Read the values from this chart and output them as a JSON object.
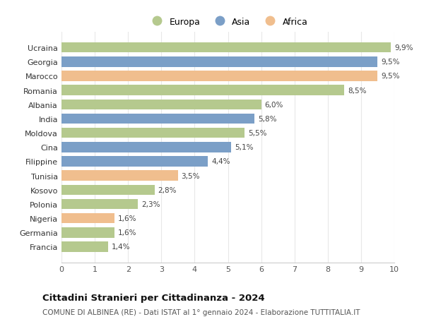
{
  "categories": [
    "Francia",
    "Germania",
    "Nigeria",
    "Polonia",
    "Kosovo",
    "Tunisia",
    "Filippine",
    "Cina",
    "Moldova",
    "India",
    "Albania",
    "Romania",
    "Marocco",
    "Georgia",
    "Ucraina"
  ],
  "values": [
    1.4,
    1.6,
    1.6,
    2.3,
    2.8,
    3.5,
    4.4,
    5.1,
    5.5,
    5.8,
    6.0,
    8.5,
    9.5,
    9.5,
    9.9
  ],
  "continents": [
    "Europa",
    "Europa",
    "Africa",
    "Europa",
    "Europa",
    "Africa",
    "Asia",
    "Asia",
    "Europa",
    "Asia",
    "Europa",
    "Europa",
    "Africa",
    "Asia",
    "Europa"
  ],
  "colors": {
    "Europa": "#b5c98e",
    "Asia": "#7b9fc7",
    "Africa": "#f0be8e"
  },
  "labels": [
    "1,4%",
    "1,6%",
    "1,6%",
    "2,3%",
    "2,8%",
    "3,5%",
    "4,4%",
    "5,1%",
    "5,5%",
    "5,8%",
    "6,0%",
    "8,5%",
    "9,5%",
    "9,5%",
    "9,9%"
  ],
  "xlim": [
    0,
    10
  ],
  "xticks": [
    0,
    1,
    2,
    3,
    4,
    5,
    6,
    7,
    8,
    9,
    10
  ],
  "title": "Cittadini Stranieri per Cittadinanza - 2024",
  "subtitle": "COMUNE DI ALBINEA (RE) - Dati ISTAT al 1° gennaio 2024 - Elaborazione TUTTITALIA.IT",
  "legend_labels": [
    "Europa",
    "Asia",
    "Africa"
  ],
  "legend_colors": [
    "#b5c98e",
    "#7b9fc7",
    "#f0be8e"
  ],
  "background_color": "#ffffff",
  "grid_color": "#e8e8e8"
}
